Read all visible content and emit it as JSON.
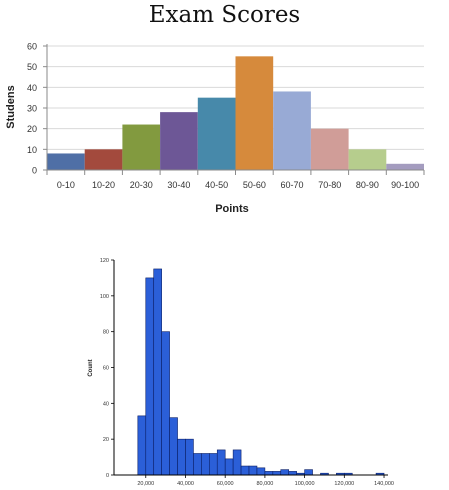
{
  "chart_data": [
    {
      "type": "bar",
      "title": "Exam Scores",
      "xlabel": "Points",
      "ylabel": "Studens",
      "ylim": [
        0,
        60
      ],
      "yticks": [
        0,
        10,
        20,
        30,
        40,
        50,
        60
      ],
      "grid": true,
      "categories": [
        "0-10",
        "10-20",
        "20-30",
        "30-40",
        "40-50",
        "50-60",
        "60-70",
        "70-80",
        "80-90",
        "90-100"
      ],
      "values": [
        8,
        10,
        22,
        28,
        35,
        55,
        38,
        20,
        10,
        3
      ],
      "colors": [
        "#4f6fa6",
        "#a34a3d",
        "#829a3f",
        "#6d5796",
        "#4789aa",
        "#d68a3c",
        "#98aad5",
        "#d09d98",
        "#b6cd8d",
        "#a49cbf"
      ]
    },
    {
      "type": "bar",
      "title": "",
      "xlabel": "",
      "ylabel": "Count",
      "ylim": [
        0,
        120
      ],
      "yticks": [
        0,
        20,
        40,
        60,
        80,
        100,
        120
      ],
      "xlim": [
        0,
        140000
      ],
      "xticks": [
        20000,
        40000,
        60000,
        80000,
        100000,
        120000,
        140000
      ],
      "xtick_labels": [
        "20,000",
        "40,000",
        "60,000",
        "80,000",
        "100,000",
        "120,000",
        "140,000"
      ],
      "bin_width": 4000,
      "bin_starts": [
        16000,
        20000,
        24000,
        28000,
        32000,
        36000,
        40000,
        44000,
        48000,
        52000,
        56000,
        60000,
        64000,
        68000,
        72000,
        76000,
        80000,
        84000,
        88000,
        92000,
        96000,
        100000,
        104000,
        108000,
        112000,
        116000,
        120000,
        124000,
        128000,
        132000,
        136000
      ],
      "values": [
        33,
        110,
        115,
        80,
        32,
        20,
        20,
        12,
        12,
        12,
        14,
        9,
        14,
        5,
        5,
        4,
        2,
        2,
        3,
        2,
        1,
        3,
        0,
        1,
        0,
        1,
        1,
        0,
        0,
        0,
        1
      ],
      "colors": [
        "#2b5fd8"
      ]
    }
  ]
}
